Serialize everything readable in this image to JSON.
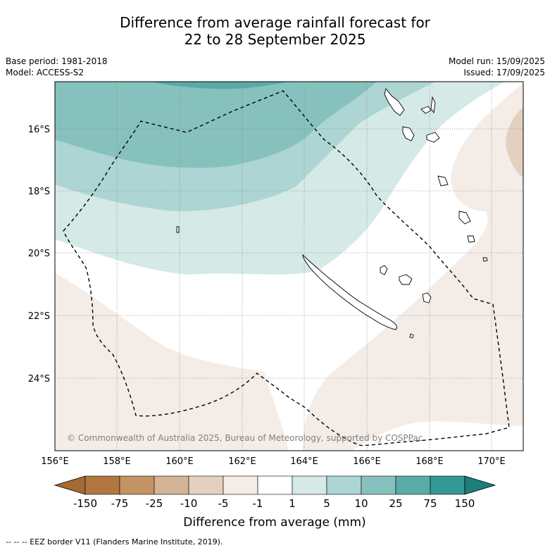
{
  "title_line1": "Difference from average rainfall forecast for",
  "title_line2": "22 to 28 September 2025",
  "base_period": "Base period: 1981-2018",
  "model": "Model: ACCESS-S2",
  "model_run": "Model run: 15/09/2025",
  "issued": "Issued: 17/09/2025",
  "copyright": "© Commonwealth of Australia 2025, Bureau of Meteorology, supported by COSPPac",
  "lat_labels": [
    "16°S",
    "18°S",
    "20°S",
    "22°S",
    "24°S"
  ],
  "lon_labels": [
    "156°E",
    "158°E",
    "160°E",
    "162°E",
    "164°E",
    "166°E",
    "168°E",
    "170°E"
  ],
  "colorbar": {
    "title": "Difference from average (mm)",
    "ticks": [
      "-150",
      "-75",
      "-25",
      "-10",
      "-5",
      "-1",
      "1",
      "5",
      "10",
      "25",
      "75",
      "150"
    ],
    "colors": [
      "#a36a35",
      "#b07840",
      "#c49467",
      "#d4b396",
      "#e4d0bf",
      "#f4ece6",
      "#ffffff",
      "#d5e9e7",
      "#acd5d3",
      "#86c1be",
      "#5aaaa8",
      "#349894",
      "#1f7e7b"
    ]
  },
  "eez_note": "-- -- -- EEZ border V11 (Flanders Marine Institute, 2019)."
}
